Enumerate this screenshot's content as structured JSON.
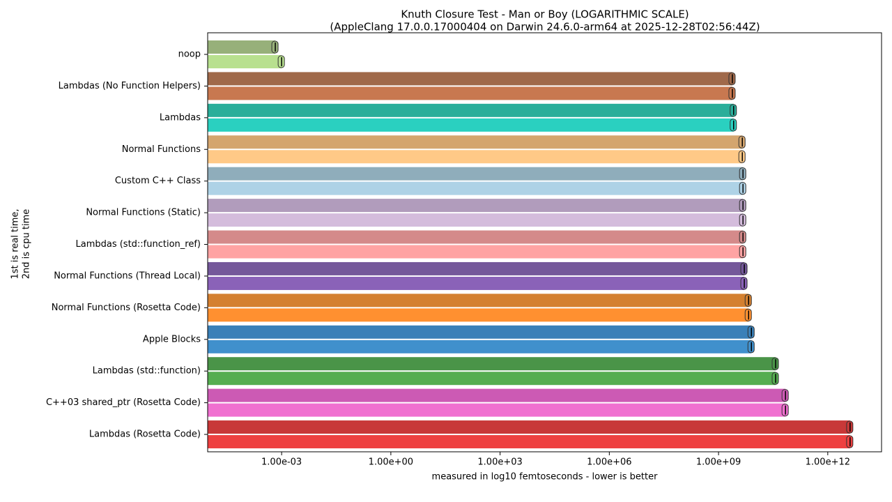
{
  "chart_data": {
    "type": "bar",
    "orientation": "horizontal",
    "log_x": true,
    "title_lines": [
      "Knuth Closure Test - Man or Boy (LOGARITHMIC SCALE)",
      "(AppleClang 17.0.0.17000404 on Darwin 24.6.0-arm64 at 2025-12-28T02:56:44Z)"
    ],
    "xlabel": "measured in log10 femtoseconds - lower is better",
    "ylabel_lines": [
      "1st is real time,",
      "2nd is cpu time"
    ],
    "categories": [
      "noop",
      "Lambdas (No Function Helpers)",
      "Lambdas",
      "Normal Functions",
      "Custom C++ Class",
      "Normal Functions (Static)",
      "Lambdas (std::function_ref)",
      "Normal Functions (Thread Local)",
      "Normal Functions (Rosetta Code)",
      "Apple Blocks",
      "Lambdas (std::function)",
      "C++03 shared_ptr (Rosetta Code)",
      "Lambdas (Rosetta Code)"
    ],
    "series": [
      {
        "values": [
          0.00067,
          2400000000,
          2600000000,
          4500000000,
          4700000000,
          4700000000,
          4700000000,
          5100000000,
          6700000000,
          8000000000,
          37000000000,
          69000000000,
          4100000000000
        ],
        "colors": [
          "#97b07a",
          "#a0694a",
          "#2aae9a",
          "#d4a56e",
          "#8fadbb",
          "#b19cbc",
          "#d48a8a",
          "#74589a",
          "#d48030",
          "#3a80b8",
          "#4a9448",
          "#cc5ab4",
          "#c83838"
        ]
      },
      {
        "values": [
          0.001,
          2400000000,
          2600000000,
          4500000000,
          4700000000,
          4700000000,
          4700000000,
          5100000000,
          6700000000,
          8000000000,
          37000000000,
          69000000000,
          4100000000000
        ],
        "colors": [
          "#b8e08f",
          "#c87850",
          "#2ad0c0",
          "#ffc987",
          "#aed2e6",
          "#d4bcdc",
          "#ffa3a3",
          "#8a62b8",
          "#ff9030",
          "#4090cc",
          "#55ad50",
          "#f070d0",
          "#ee4040"
        ]
      }
    ],
    "xlim": [
      9.3e-06,
      30000000000000
    ],
    "xticks": [
      {
        "value": 0.001,
        "label": "1.00e-03"
      },
      {
        "value": 1,
        "label": "1.00e+00"
      },
      {
        "value": 1000,
        "label": "1.00e+03"
      },
      {
        "value": 1000000,
        "label": "1.00e+06"
      },
      {
        "value": 1000000000,
        "label": "1.00e+09"
      },
      {
        "value": 1000000000000,
        "label": "1.00e+12"
      }
    ]
  }
}
